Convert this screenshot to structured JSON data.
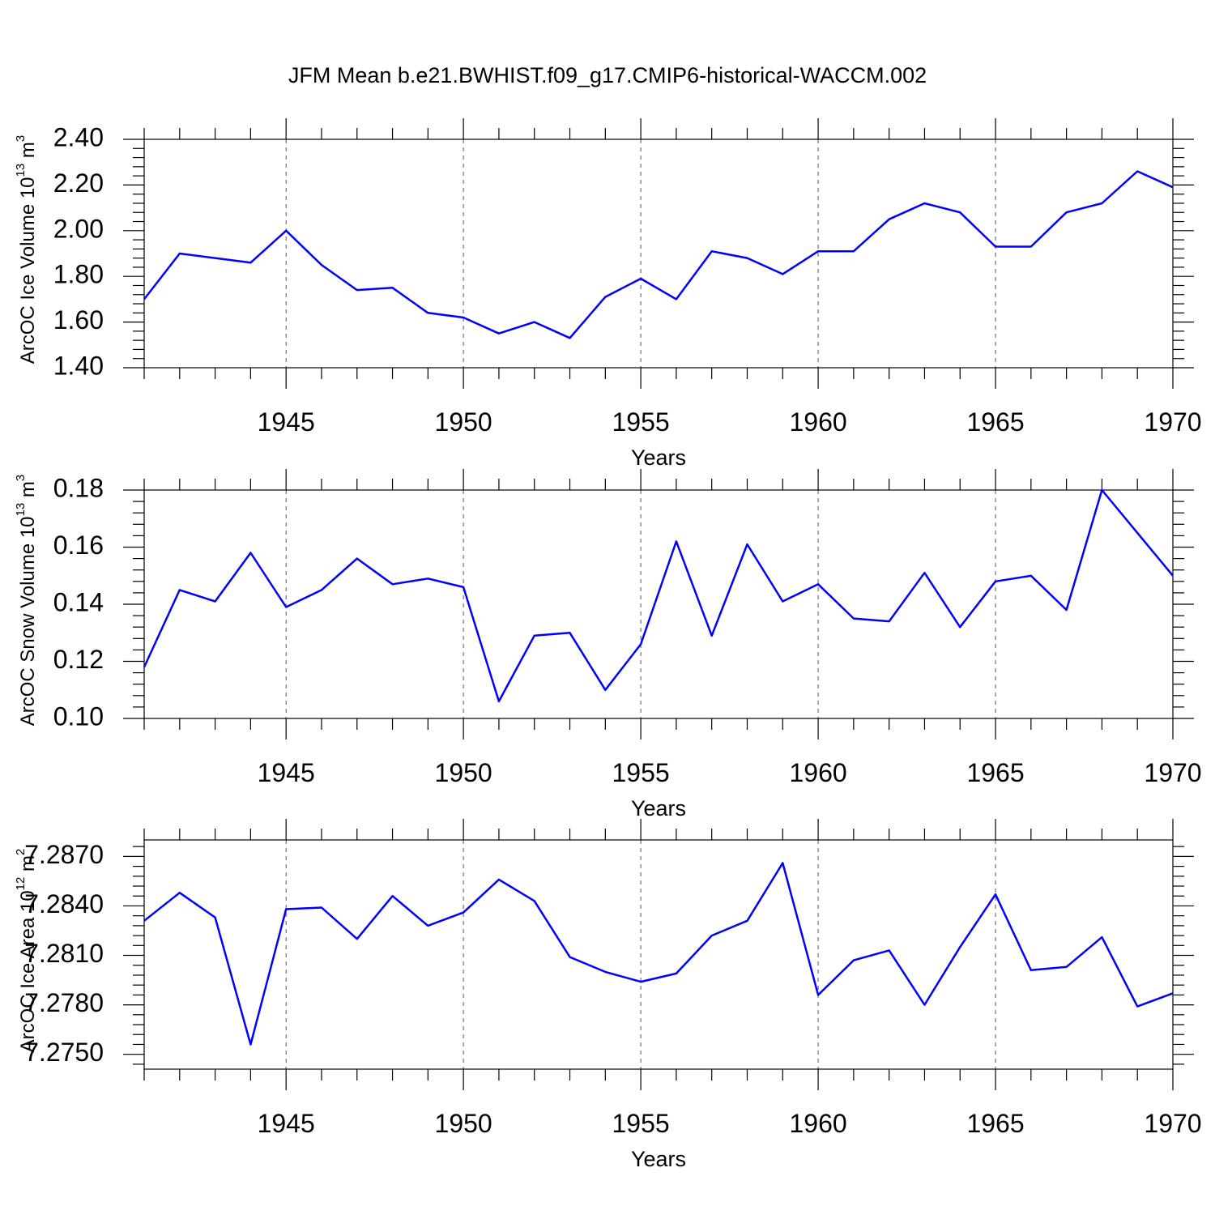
{
  "figure": {
    "title": "JFM Mean b.e21.BWHIST.f09_g17.CMIP6-historical-WACCM.002"
  },
  "chart_data": [
    {
      "type": "line",
      "xlabel": "Years",
      "ylabel": {
        "main": "ArcOC Ice Volume 10",
        "exp": "13",
        "unit": " m",
        "unit_exp": "3"
      },
      "xlim": [
        1941,
        1970
      ],
      "ylim": [
        1.4,
        2.4
      ],
      "xticks": [
        1945,
        1950,
        1955,
        1960,
        1965,
        1970
      ],
      "yticks": [
        1.4,
        1.6,
        1.8,
        2.0,
        2.2,
        2.4
      ],
      "ytick_labels": [
        "1.40",
        "1.60",
        "1.80",
        "2.00",
        "2.20",
        "2.40"
      ],
      "grid": "vertical dashed at major x ticks",
      "color": "#0000ff",
      "x": [
        1941,
        1942,
        1943,
        1944,
        1945,
        1946,
        1947,
        1948,
        1949,
        1950,
        1951,
        1952,
        1953,
        1954,
        1955,
        1956,
        1957,
        1958,
        1959,
        1960,
        1961,
        1962,
        1963,
        1964,
        1965,
        1966,
        1967,
        1968,
        1969,
        1970
      ],
      "y": [
        1.7,
        1.9,
        1.88,
        1.86,
        2.0,
        1.85,
        1.74,
        1.75,
        1.64,
        1.62,
        1.55,
        1.6,
        1.53,
        1.71,
        1.79,
        1.7,
        1.91,
        1.88,
        1.81,
        1.91,
        1.91,
        2.05,
        2.12,
        2.08,
        1.93,
        1.93,
        2.08,
        2.12,
        2.26,
        2.19
      ]
    },
    {
      "type": "line",
      "xlabel": "Years",
      "ylabel": {
        "main": "ArcOC Snow Volume 10",
        "exp": "13",
        "unit": " m",
        "unit_exp": "3"
      },
      "xlim": [
        1941,
        1970
      ],
      "ylim": [
        0.1,
        0.18
      ],
      "xticks": [
        1945,
        1950,
        1955,
        1960,
        1965,
        1970
      ],
      "yticks": [
        0.1,
        0.12,
        0.14,
        0.16,
        0.18
      ],
      "ytick_labels": [
        "0.10",
        "0.12",
        "0.14",
        "0.16",
        "0.18"
      ],
      "grid": "vertical dashed at major x ticks",
      "color": "#0000ff",
      "x": [
        1941,
        1942,
        1943,
        1944,
        1945,
        1946,
        1947,
        1948,
        1949,
        1950,
        1951,
        1952,
        1953,
        1954,
        1955,
        1956,
        1957,
        1958,
        1959,
        1960,
        1961,
        1962,
        1963,
        1964,
        1965,
        1966,
        1967,
        1968,
        1969,
        1970
      ],
      "y": [
        0.118,
        0.145,
        0.141,
        0.158,
        0.139,
        0.145,
        0.156,
        0.147,
        0.149,
        0.146,
        0.106,
        0.129,
        0.13,
        0.11,
        0.126,
        0.162,
        0.129,
        0.161,
        0.141,
        0.147,
        0.135,
        0.134,
        0.151,
        0.132,
        0.148,
        0.15,
        0.138,
        0.18,
        0.165,
        0.15
      ]
    },
    {
      "type": "line",
      "xlabel": "Years",
      "ylabel": {
        "main": "ArcOC Ice Area 10",
        "exp": "12",
        "unit": " m",
        "unit_exp": "2"
      },
      "xlim": [
        1941,
        1970
      ],
      "ylim": [
        7.2741,
        7.288
      ],
      "xticks": [
        1945,
        1950,
        1955,
        1960,
        1965,
        1970
      ],
      "yticks": [
        7.275,
        7.278,
        7.281,
        7.284,
        7.287
      ],
      "ytick_labels": [
        "7.2750",
        "7.2780",
        "7.2810",
        "7.2840",
        "7.2870"
      ],
      "grid": "vertical dashed at major x ticks",
      "color": "#0000ff",
      "x": [
        1941,
        1942,
        1943,
        1944,
        1945,
        1946,
        1947,
        1948,
        1949,
        1950,
        1951,
        1952,
        1953,
        1954,
        1955,
        1956,
        1957,
        1958,
        1959,
        1960,
        1961,
        1962,
        1963,
        1964,
        1965,
        1966,
        1967,
        1968,
        1969,
        1970
      ],
      "y": [
        7.2831,
        7.2848,
        7.2833,
        7.2756,
        7.2838,
        7.2839,
        7.282,
        7.2846,
        7.2828,
        7.2836,
        7.2856,
        7.2843,
        7.2809,
        7.28,
        7.2794,
        7.2799,
        7.2822,
        7.2831,
        7.2866,
        7.2786,
        7.2807,
        7.2813,
        7.278,
        7.2815,
        7.2847,
        7.2801,
        7.2803,
        7.2821,
        7.2779,
        7.2787
      ]
    }
  ]
}
